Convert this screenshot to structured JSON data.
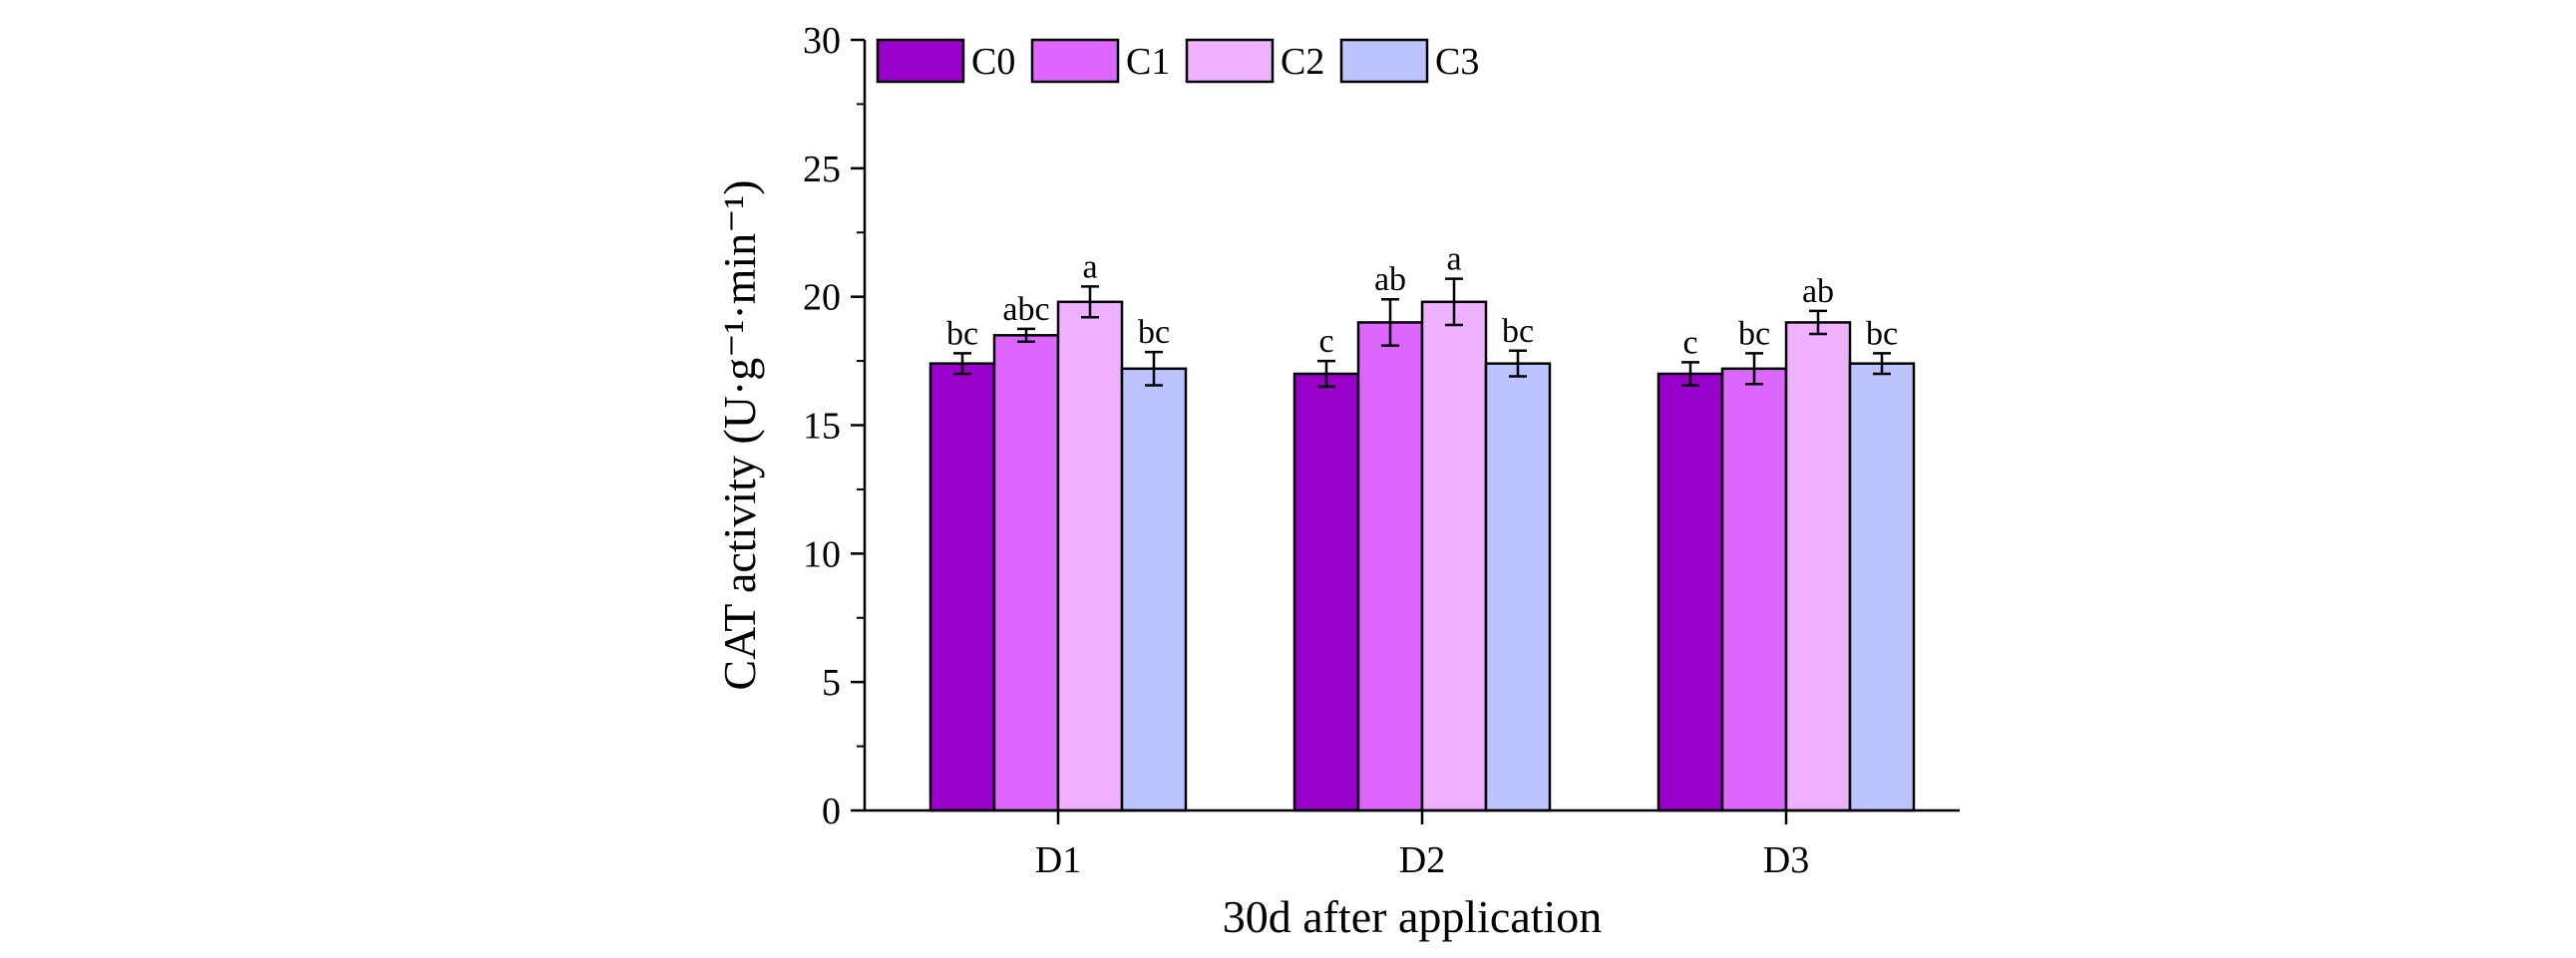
{
  "chart_data": {
    "type": "bar",
    "title": "",
    "xlabel": "30d after application",
    "ylabel": "CAT activity (U·g⁻¹·min⁻¹)",
    "ylim": [
      0,
      30
    ],
    "yticks": [
      0,
      5,
      10,
      15,
      20,
      25,
      30
    ],
    "categories": [
      "D1",
      "D2",
      "D3"
    ],
    "legend_position": "top-left",
    "series": [
      {
        "name": "C0",
        "color": "#9900cc",
        "values": [
          17.4,
          17.0,
          17.0
        ],
        "errors": [
          0.4,
          0.5,
          0.45
        ],
        "labels": [
          "bc",
          "c",
          "c"
        ]
      },
      {
        "name": "C1",
        "color": "#dd66ff",
        "values": [
          18.5,
          19.0,
          17.2
        ],
        "errors": [
          0.25,
          0.9,
          0.6
        ],
        "labels": [
          "abc",
          "ab",
          "bc"
        ]
      },
      {
        "name": "C2",
        "color": "#eeb0ff",
        "values": [
          19.8,
          19.8,
          19.0
        ],
        "errors": [
          0.6,
          0.9,
          0.45
        ],
        "labels": [
          "a",
          "a",
          "ab"
        ]
      },
      {
        "name": "C3",
        "color": "#bbc4ff",
        "values": [
          17.2,
          17.4,
          17.4
        ],
        "errors": [
          0.65,
          0.5,
          0.4
        ],
        "labels": [
          "bc",
          "bc",
          "bc"
        ]
      }
    ]
  }
}
